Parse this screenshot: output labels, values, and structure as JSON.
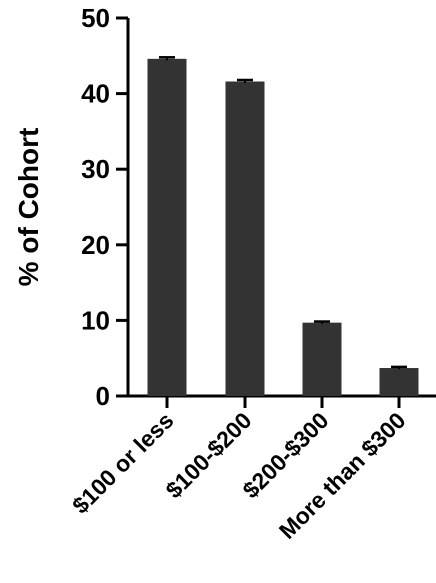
{
  "chart_data": {
    "type": "bar",
    "title": "",
    "xlabel": "",
    "ylabel": "% of Cohort",
    "ylim": [
      0,
      50
    ],
    "yticks": [
      "0",
      "10",
      "20",
      "30",
      "40",
      "50"
    ],
    "categories": [
      "$100 or less",
      "$100-$200",
      "$200-$300",
      "More than $300"
    ],
    "values": [
      44.6,
      41.6,
      9.7,
      3.7
    ],
    "error": [
      0.2,
      0.2,
      0.15,
      0.15
    ],
    "grid": false,
    "legend": "none",
    "bar_color": "#333333"
  }
}
